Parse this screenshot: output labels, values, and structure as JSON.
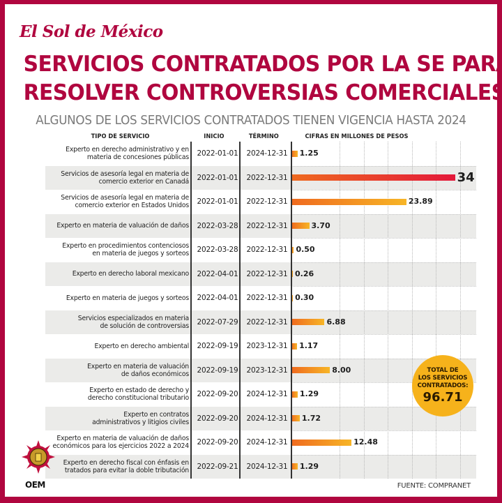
{
  "brand": {
    "logo_text": "El Sol de México",
    "agency_text": "OEM",
    "accent_color": "#b0063f",
    "bar_gradient": [
      "#ef6a1f",
      "#f7b526"
    ],
    "max_bar_color": "#e3183a",
    "total_badge_color": "#f6b21b"
  },
  "header": {
    "title_line1": "SERVICIOS CONTRATADOS POR LA SE PARA",
    "title_line2": "RESOLVER CONTROVERSIAS COMERCIALES",
    "subtitle": "ALGUNOS DE LOS SERVICIOS CONTRATADOS TIENEN VIGENCIA HASTA 2024"
  },
  "table": {
    "columns": {
      "service": "TIPO DE SERVICIO",
      "start": "INICIO",
      "end": "TÉRMINO",
      "amount": "CIFRAS EN MILLONES DE PESOS"
    },
    "rows": [
      {
        "service": [
          "Experto en derecho administrativo y en",
          "materia de concesiones públicas"
        ],
        "start": "2022-01-01",
        "end": "2024-12-31",
        "label": "1.25"
      },
      {
        "service": [
          "Servicios de asesoría legal en materia de",
          "comercio exterior en Canadá"
        ],
        "start": "2022-01-01",
        "end": "2022-12-31",
        "label": "34"
      },
      {
        "service": [
          "Servicios de asesoría legal en materia de",
          "comercio exterior en Estados Unidos"
        ],
        "start": "2022-01-01",
        "end": "2022-12-31",
        "label": "23.89"
      },
      {
        "service": [
          "Experto en materia de valuación de daños"
        ],
        "start": "2022-03-28",
        "end": "2022-12-31",
        "label": "3.70"
      },
      {
        "service": [
          "Experto en procedimientos contenciosos",
          "en materia de juegos y sorteos"
        ],
        "start": "2022-03-28",
        "end": "2022-12-31",
        "label": "0.50"
      },
      {
        "service": [
          "Experto en derecho laboral mexicano"
        ],
        "start": "2022-04-01",
        "end": "2022-12-31",
        "label": "0.26"
      },
      {
        "service": [
          "Experto en materia de juegos y sorteos"
        ],
        "start": "2022-04-01",
        "end": "2022-12-31",
        "label": "0.30"
      },
      {
        "service": [
          "Servicios especializados en materia",
          "de solución de controversias"
        ],
        "start": "2022-07-29",
        "end": "2022-12-31",
        "label": "6.88"
      },
      {
        "service": [
          "Experto en derecho ambiental"
        ],
        "start": "2022-09-19",
        "end": "2023-12-31",
        "label": "1.17"
      },
      {
        "service": [
          "Experto en materia de valuación",
          "de daños económicos"
        ],
        "start": "2022-09-19",
        "end": "2023-12-31",
        "label": "8.00"
      },
      {
        "service": [
          "Experto en estado de derecho y",
          "derecho constitucional tributario"
        ],
        "start": "2022-09-20",
        "end": "2024-12-31",
        "label": "1.29"
      },
      {
        "service": [
          "Experto en contratos",
          "administrativos y litigios civiles"
        ],
        "start": "2022-09-20",
        "end": "2024-12-31",
        "label": "1.72"
      },
      {
        "service": [
          "Experto en materia de valuación de daños",
          "económicos para los ejercicios 2022 a 2024"
        ],
        "start": "2022-09-20",
        "end": "2024-12-31",
        "label": "12.48"
      },
      {
        "service": [
          "Experto en derecho fiscal con énfasis en",
          "tratados para evitar la doble tributación"
        ],
        "start": "2022-09-21",
        "end": "2024-12-31",
        "label": "1.29"
      }
    ]
  },
  "total": {
    "label_lines": [
      "TOTAL DE",
      "LOS SERVICIOS",
      "CONTRATADOS:"
    ],
    "value": "96.71"
  },
  "source": "FUENTE: COMPRANET",
  "chart_data": {
    "type": "bar",
    "orientation": "horizontal",
    "title": "SERVICIOS CONTRATADOS POR LA SE PARA RESOLVER CONTROVERSIAS COMERCIALES",
    "subtitle": "ALGUNOS DE LOS SERVICIOS CONTRATADOS TIENEN VIGENCIA HASTA 2024",
    "xlabel": "CIFRAS EN MILLONES DE PESOS",
    "ylabel": "TIPO DE SERVICIO",
    "xlim": [
      0,
      38
    ],
    "grid": true,
    "gridlines_at": [
      10,
      15,
      20,
      25,
      30,
      35
    ],
    "categories": [
      "Experto en derecho administrativo y en materia de concesiones públicas",
      "Servicios de asesoría legal en materia de comercio exterior en Canadá",
      "Servicios de asesoría legal en materia de comercio exterior en Estados Unidos",
      "Experto en materia de valuación de daños",
      "Experto en procedimientos contenciosos en materia de juegos y sorteos",
      "Experto en derecho laboral mexicano",
      "Experto en materia de juegos y sorteos",
      "Servicios especializados en materia de solución de controversias",
      "Experto en derecho ambiental",
      "Experto en materia de valuación de daños económicos",
      "Experto en estado de derecho y derecho constitucional tributario",
      "Experto en contratos administrativos y litigios civiles",
      "Experto en materia de valuación de daños económicos para los ejercicios 2022 a 2024",
      "Experto en derecho fiscal con énfasis en tratados para evitar la doble tributación"
    ],
    "values": [
      1.25,
      34,
      23.89,
      3.7,
      0.5,
      0.26,
      0.3,
      6.88,
      1.17,
      8.0,
      1.29,
      1.72,
      12.48,
      1.29
    ],
    "total": 96.71,
    "source": "COMPRANET"
  }
}
